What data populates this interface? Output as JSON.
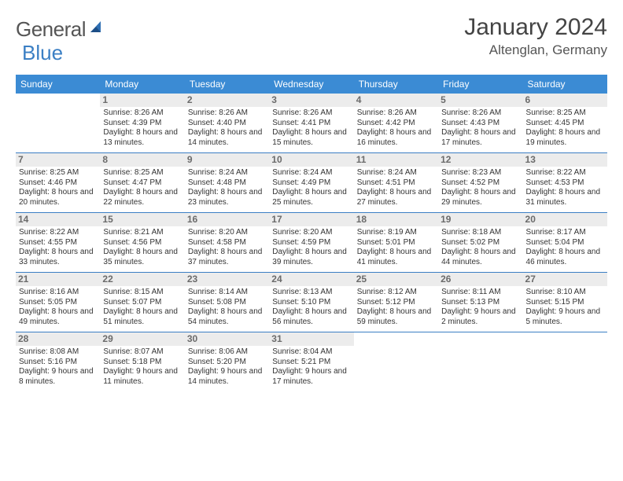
{
  "logo": {
    "word1": "General",
    "word2": "Blue"
  },
  "title": "January 2024",
  "location": "Altenglan, Germany",
  "dayHeaders": [
    "Sunday",
    "Monday",
    "Tuesday",
    "Wednesday",
    "Thursday",
    "Friday",
    "Saturday"
  ],
  "colors": {
    "headerBg": "#3b8bd4",
    "rowBorder": "#3b7fc4",
    "dayNumBg": "#ececec",
    "text": "#333333",
    "logoBlue": "#3b7fc4"
  },
  "typography": {
    "titleFontSize": 30,
    "locationFontSize": 17,
    "headerFontSize": 12,
    "cellFontSize": 10,
    "dayNumFontSize": 12
  },
  "layout": {
    "widthPx": 792,
    "heightPx": 612,
    "cols": 7,
    "rows": 5
  },
  "weeks": [
    [
      null,
      {
        "n": 1,
        "sunrise": "8:26 AM",
        "sunset": "4:39 PM",
        "dl": "8 hours and 13 minutes."
      },
      {
        "n": 2,
        "sunrise": "8:26 AM",
        "sunset": "4:40 PM",
        "dl": "8 hours and 14 minutes."
      },
      {
        "n": 3,
        "sunrise": "8:26 AM",
        "sunset": "4:41 PM",
        "dl": "8 hours and 15 minutes."
      },
      {
        "n": 4,
        "sunrise": "8:26 AM",
        "sunset": "4:42 PM",
        "dl": "8 hours and 16 minutes."
      },
      {
        "n": 5,
        "sunrise": "8:26 AM",
        "sunset": "4:43 PM",
        "dl": "8 hours and 17 minutes."
      },
      {
        "n": 6,
        "sunrise": "8:25 AM",
        "sunset": "4:45 PM",
        "dl": "8 hours and 19 minutes."
      }
    ],
    [
      {
        "n": 7,
        "sunrise": "8:25 AM",
        "sunset": "4:46 PM",
        "dl": "8 hours and 20 minutes."
      },
      {
        "n": 8,
        "sunrise": "8:25 AM",
        "sunset": "4:47 PM",
        "dl": "8 hours and 22 minutes."
      },
      {
        "n": 9,
        "sunrise": "8:24 AM",
        "sunset": "4:48 PM",
        "dl": "8 hours and 23 minutes."
      },
      {
        "n": 10,
        "sunrise": "8:24 AM",
        "sunset": "4:49 PM",
        "dl": "8 hours and 25 minutes."
      },
      {
        "n": 11,
        "sunrise": "8:24 AM",
        "sunset": "4:51 PM",
        "dl": "8 hours and 27 minutes."
      },
      {
        "n": 12,
        "sunrise": "8:23 AM",
        "sunset": "4:52 PM",
        "dl": "8 hours and 29 minutes."
      },
      {
        "n": 13,
        "sunrise": "8:22 AM",
        "sunset": "4:53 PM",
        "dl": "8 hours and 31 minutes."
      }
    ],
    [
      {
        "n": 14,
        "sunrise": "8:22 AM",
        "sunset": "4:55 PM",
        "dl": "8 hours and 33 minutes."
      },
      {
        "n": 15,
        "sunrise": "8:21 AM",
        "sunset": "4:56 PM",
        "dl": "8 hours and 35 minutes."
      },
      {
        "n": 16,
        "sunrise": "8:20 AM",
        "sunset": "4:58 PM",
        "dl": "8 hours and 37 minutes."
      },
      {
        "n": 17,
        "sunrise": "8:20 AM",
        "sunset": "4:59 PM",
        "dl": "8 hours and 39 minutes."
      },
      {
        "n": 18,
        "sunrise": "8:19 AM",
        "sunset": "5:01 PM",
        "dl": "8 hours and 41 minutes."
      },
      {
        "n": 19,
        "sunrise": "8:18 AM",
        "sunset": "5:02 PM",
        "dl": "8 hours and 44 minutes."
      },
      {
        "n": 20,
        "sunrise": "8:17 AM",
        "sunset": "5:04 PM",
        "dl": "8 hours and 46 minutes."
      }
    ],
    [
      {
        "n": 21,
        "sunrise": "8:16 AM",
        "sunset": "5:05 PM",
        "dl": "8 hours and 49 minutes."
      },
      {
        "n": 22,
        "sunrise": "8:15 AM",
        "sunset": "5:07 PM",
        "dl": "8 hours and 51 minutes."
      },
      {
        "n": 23,
        "sunrise": "8:14 AM",
        "sunset": "5:08 PM",
        "dl": "8 hours and 54 minutes."
      },
      {
        "n": 24,
        "sunrise": "8:13 AM",
        "sunset": "5:10 PM",
        "dl": "8 hours and 56 minutes."
      },
      {
        "n": 25,
        "sunrise": "8:12 AM",
        "sunset": "5:12 PM",
        "dl": "8 hours and 59 minutes."
      },
      {
        "n": 26,
        "sunrise": "8:11 AM",
        "sunset": "5:13 PM",
        "dl": "9 hours and 2 minutes."
      },
      {
        "n": 27,
        "sunrise": "8:10 AM",
        "sunset": "5:15 PM",
        "dl": "9 hours and 5 minutes."
      }
    ],
    [
      {
        "n": 28,
        "sunrise": "8:08 AM",
        "sunset": "5:16 PM",
        "dl": "9 hours and 8 minutes."
      },
      {
        "n": 29,
        "sunrise": "8:07 AM",
        "sunset": "5:18 PM",
        "dl": "9 hours and 11 minutes."
      },
      {
        "n": 30,
        "sunrise": "8:06 AM",
        "sunset": "5:20 PM",
        "dl": "9 hours and 14 minutes."
      },
      {
        "n": 31,
        "sunrise": "8:04 AM",
        "sunset": "5:21 PM",
        "dl": "9 hours and 17 minutes."
      },
      null,
      null,
      null
    ]
  ],
  "labels": {
    "sunrise": "Sunrise:",
    "sunset": "Sunset:",
    "daylight": "Daylight:"
  }
}
